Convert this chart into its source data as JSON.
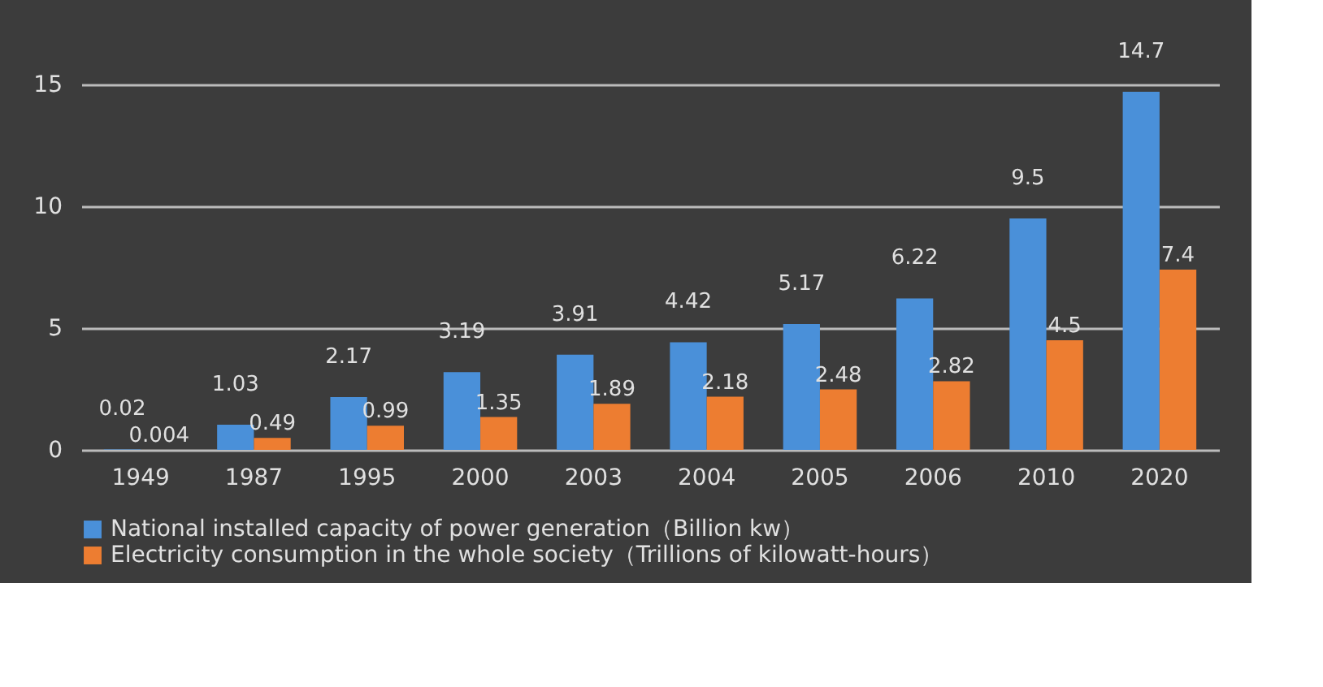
{
  "chart_data": {
    "type": "bar",
    "categories": [
      "1949",
      "1987",
      "1995",
      "2000",
      "2003",
      "2004",
      "2005",
      "2006",
      "2010",
      "2020"
    ],
    "series": [
      {
        "name": "National installed capacity of power generation（Billion kw）",
        "color": "#4a90d9",
        "values": [
          0.02,
          1.03,
          2.17,
          3.19,
          3.91,
          4.42,
          5.17,
          6.22,
          9.5,
          14.7
        ]
      },
      {
        "name": "Electricity consumption in the whole society（Trillions of kilowatt-hours）",
        "color": "#ed7d31",
        "values": [
          0.004,
          0.49,
          0.99,
          1.35,
          1.89,
          2.18,
          2.48,
          2.82,
          4.5,
          7.4
        ]
      }
    ],
    "ylim": [
      0,
      15
    ],
    "yticks": [
      0,
      5,
      10,
      15
    ],
    "grid": "y",
    "legend": "bottom",
    "data_labels": true
  }
}
